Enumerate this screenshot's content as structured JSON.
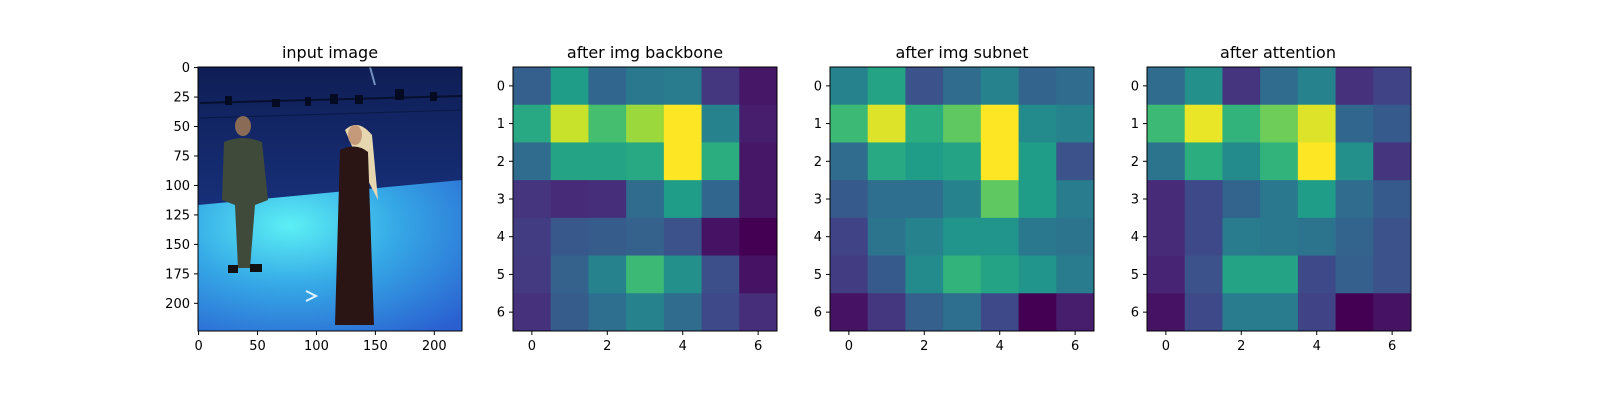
{
  "chart_data": [
    {
      "type": "image",
      "title": "input image",
      "xticks": [
        "0",
        "50",
        "100",
        "150",
        "200"
      ],
      "yticks": [
        "0",
        "25",
        "50",
        "75",
        "100",
        "125",
        "150",
        "175",
        "200"
      ],
      "xlim": [
        -0.5,
        223.5
      ],
      "ylim": [
        223.5,
        -0.5
      ],
      "tick_values_x": [
        0,
        50,
        100,
        150,
        200
      ],
      "tick_values_y": [
        0,
        25,
        50,
        75,
        100,
        125,
        150,
        175,
        200
      ]
    },
    {
      "type": "heatmap",
      "title": "after img backbone",
      "colormap": "viridis",
      "xticks": [
        "0",
        "2",
        "4",
        "6"
      ],
      "yticks": [
        "0",
        "1",
        "2",
        "3",
        "4",
        "5",
        "6"
      ],
      "values": [
        [
          0.3,
          0.55,
          0.33,
          0.4,
          0.42,
          0.16,
          0.06
        ],
        [
          0.6,
          0.92,
          0.7,
          0.85,
          1.0,
          0.45,
          0.08
        ],
        [
          0.35,
          0.58,
          0.58,
          0.6,
          1.0,
          0.62,
          0.06
        ],
        [
          0.15,
          0.12,
          0.13,
          0.35,
          0.55,
          0.33,
          0.06
        ],
        [
          0.18,
          0.27,
          0.29,
          0.31,
          0.25,
          0.05,
          0.0
        ],
        [
          0.17,
          0.31,
          0.45,
          0.68,
          0.5,
          0.24,
          0.05
        ],
        [
          0.14,
          0.29,
          0.36,
          0.45,
          0.35,
          0.22,
          0.13
        ]
      ]
    },
    {
      "type": "heatmap",
      "title": "after img subnet",
      "colormap": "viridis",
      "xticks": [
        "0",
        "2",
        "4",
        "6"
      ],
      "yticks": [
        "0",
        "1",
        "2",
        "3",
        "4",
        "5",
        "6"
      ],
      "values": [
        [
          0.45,
          0.58,
          0.25,
          0.35,
          0.45,
          0.32,
          0.35
        ],
        [
          0.68,
          0.95,
          0.62,
          0.75,
          1.0,
          0.48,
          0.45
        ],
        [
          0.35,
          0.6,
          0.55,
          0.58,
          1.0,
          0.55,
          0.25
        ],
        [
          0.28,
          0.36,
          0.36,
          0.45,
          0.75,
          0.55,
          0.42
        ],
        [
          0.2,
          0.38,
          0.45,
          0.52,
          0.52,
          0.4,
          0.38
        ],
        [
          0.18,
          0.28,
          0.48,
          0.65,
          0.58,
          0.52,
          0.42
        ],
        [
          0.05,
          0.16,
          0.3,
          0.36,
          0.22,
          0.0,
          0.08
        ]
      ]
    },
    {
      "type": "heatmap",
      "title": "after attention",
      "colormap": "viridis",
      "xticks": [
        "0",
        "2",
        "4",
        "6"
      ],
      "yticks": [
        "0",
        "1",
        "2",
        "3",
        "4",
        "5",
        "6"
      ],
      "values": [
        [
          0.35,
          0.5,
          0.15,
          0.35,
          0.45,
          0.14,
          0.2
        ],
        [
          0.68,
          0.97,
          0.65,
          0.78,
          0.95,
          0.33,
          0.28
        ],
        [
          0.38,
          0.62,
          0.48,
          0.65,
          1.0,
          0.5,
          0.15
        ],
        [
          0.12,
          0.22,
          0.32,
          0.4,
          0.55,
          0.35,
          0.28
        ],
        [
          0.12,
          0.22,
          0.42,
          0.4,
          0.38,
          0.32,
          0.25
        ],
        [
          0.1,
          0.25,
          0.58,
          0.58,
          0.22,
          0.3,
          0.25
        ],
        [
          0.05,
          0.22,
          0.42,
          0.42,
          0.2,
          0.0,
          0.05
        ]
      ]
    }
  ]
}
